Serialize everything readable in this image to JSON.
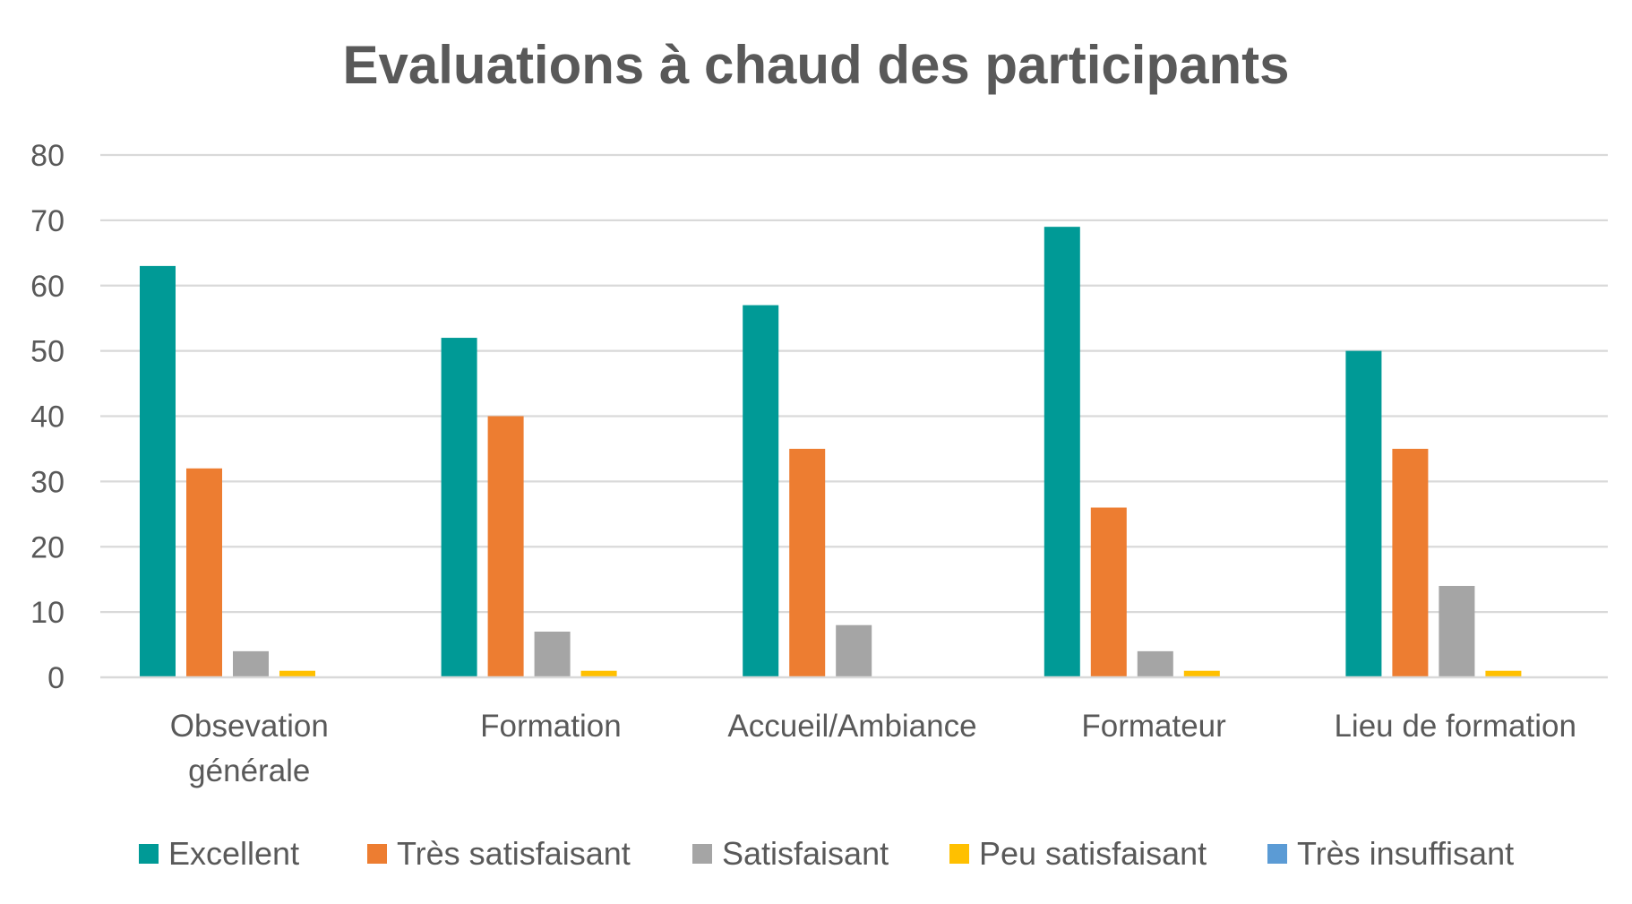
{
  "chart_data": {
    "type": "bar",
    "title": "Evaluations à chaud des participants",
    "xlabel": "",
    "ylabel": "",
    "ylim": [
      0,
      80
    ],
    "yticks": [
      0,
      10,
      20,
      30,
      40,
      50,
      60,
      70,
      80
    ],
    "grid": true,
    "legend_position": "bottom",
    "categories": [
      [
        "Obsevation",
        "générale"
      ],
      [
        "Formation"
      ],
      [
        "Accueil/Ambiance"
      ],
      [
        "Formateur"
      ],
      [
        "Lieu de formation"
      ]
    ],
    "series": [
      {
        "name": "Excellent",
        "color": "#009a96",
        "values": [
          63,
          52,
          57,
          69,
          50
        ]
      },
      {
        "name": "Très satisfaisant",
        "color": "#ed7d31",
        "values": [
          32,
          40,
          35,
          26,
          35
        ]
      },
      {
        "name": "Satisfaisant",
        "color": "#a5a5a5",
        "values": [
          4,
          7,
          8,
          4,
          14
        ]
      },
      {
        "name": "Peu satisfaisant",
        "color": "#ffc000",
        "values": [
          1,
          1,
          0,
          1,
          1
        ]
      },
      {
        "name": "Très insuffisant",
        "color": "#5b9bd5",
        "values": [
          0,
          0,
          0,
          0,
          0
        ]
      }
    ]
  }
}
